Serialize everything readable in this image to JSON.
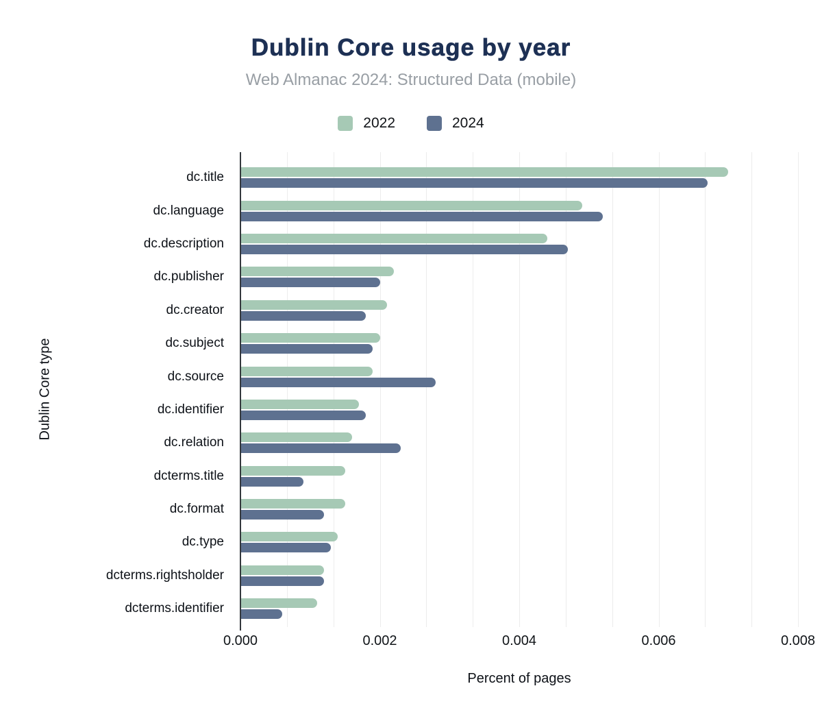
{
  "header": {
    "title": "Dublin Core usage by year",
    "subtitle": "Web Almanac 2024: Structured Data (mobile)"
  },
  "legend": {
    "items": [
      {
        "label": "2022",
        "color": "#a6c9b5"
      },
      {
        "label": "2024",
        "color": "#5e7190"
      }
    ]
  },
  "colors": {
    "series_2022": "#a6c9b5",
    "series_2024": "#5e7190",
    "title": "#1d3054",
    "subtitle": "#989ea4",
    "axis_line": "#34383d",
    "gridline": "#ececec"
  },
  "chart_data": {
    "type": "bar",
    "orientation": "horizontal",
    "title": "Dublin Core usage by year",
    "subtitle": "Web Almanac 2024: Structured Data (mobile)",
    "xlabel": "Percent of pages",
    "ylabel": "Dublin Core type",
    "xlim": [
      0,
      0.008
    ],
    "xticks": [
      "0.000",
      "0.002",
      "0.004",
      "0.006",
      "0.008"
    ],
    "grid": "vertical, light minor gridlines every 0.000667, no horizontal gridlines",
    "legend_position": "top-center",
    "categories": [
      "dc.title",
      "dc.language",
      "dc.description",
      "dc.publisher",
      "dc.creator",
      "dc.subject",
      "dc.source",
      "dc.identifier",
      "dc.relation",
      "dcterms.title",
      "dc.format",
      "dc.type",
      "dcterms.rightsholder",
      "dcterms.identifier"
    ],
    "series": [
      {
        "name": "2022",
        "color": "#a6c9b5",
        "values": [
          0.007,
          0.0049,
          0.0044,
          0.0022,
          0.0021,
          0.002,
          0.0019,
          0.0017,
          0.0016,
          0.0015,
          0.0015,
          0.0014,
          0.0012,
          0.0011
        ]
      },
      {
        "name": "2024",
        "color": "#5e7190",
        "values": [
          0.0067,
          0.0052,
          0.0047,
          0.002,
          0.0018,
          0.0019,
          0.0028,
          0.0018,
          0.0023,
          0.0009,
          0.0012,
          0.0013,
          0.0012,
          0.0006
        ]
      }
    ]
  }
}
